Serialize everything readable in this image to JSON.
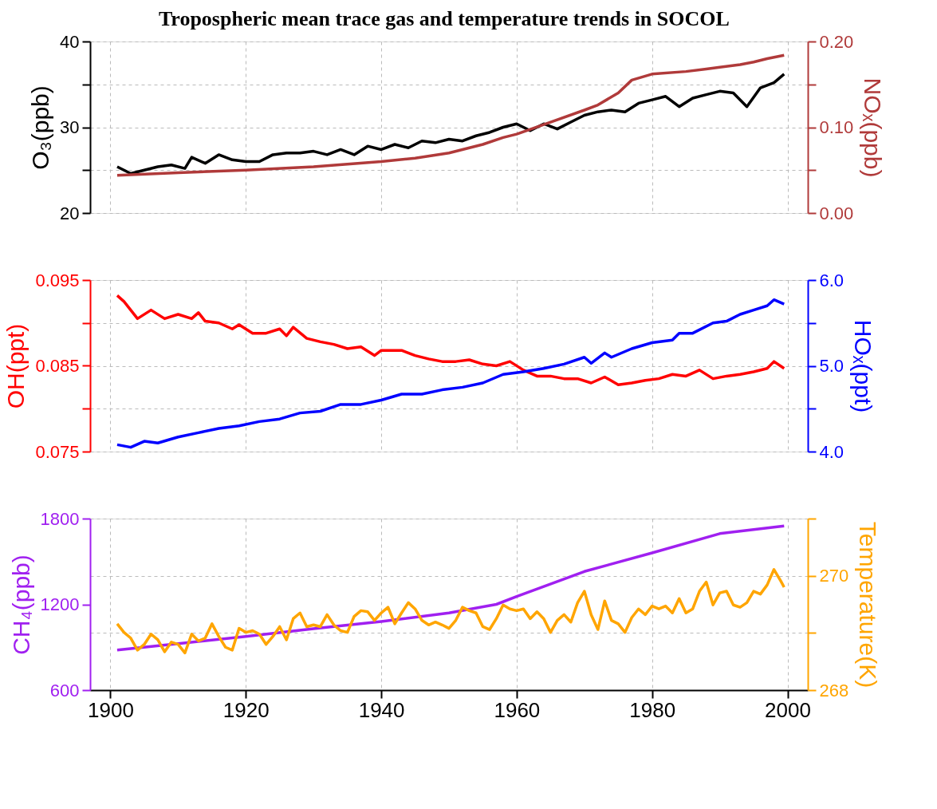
{
  "chart_data": [
    {
      "type": "line",
      "title": "Tropospheric mean trace gas and temperature trends in SOCOL",
      "ylabel": "O₃(ppb)",
      "y2label": "NOₓ(ppb)",
      "xlim": [
        1897,
        2003
      ],
      "xticks": [
        1900,
        1920,
        1940,
        1960,
        1980,
        2000
      ],
      "tick_labels": "y",
      "grid": true,
      "ylim": [
        20,
        40
      ],
      "yticks": [
        20,
        {
          "value": 25,
          "label": null
        },
        30,
        {
          "value": 35,
          "label": null
        },
        40
      ],
      "y2lim": [
        0,
        0.2
      ],
      "y2ticks": [
        {
          "value": 0,
          "label": "0.00"
        },
        {
          "value": 0.05,
          "label": null
        },
        {
          "value": 0.1,
          "label": "0.10"
        },
        {
          "value": 0.15,
          "label": null
        },
        {
          "value": 0.2,
          "label": "0.20"
        }
      ],
      "series": [
        {
          "color": "#000000",
          "x": [
            1901,
            1903,
            1905,
            1907,
            1909,
            1911,
            1912,
            1914,
            1916,
            1918,
            1920,
            1922,
            1924,
            1926,
            1928,
            1930,
            1932,
            1934,
            1936,
            1938,
            1940,
            1942,
            1944,
            1946,
            1948,
            1950,
            1952,
            1954,
            1956,
            1958,
            1960,
            1962,
            1964,
            1966,
            1968,
            1970,
            1972,
            1974,
            1976,
            1978,
            1980,
            1982,
            1984,
            1986,
            1988,
            1990,
            1992,
            1994,
            1996,
            1998,
            1999.5
          ],
          "values": [
            25.4,
            24.6,
            25.0,
            25.4,
            25.6,
            25.2,
            26.5,
            25.8,
            26.8,
            26.2,
            26.0,
            26.0,
            26.8,
            27.0,
            27.0,
            27.2,
            26.8,
            27.4,
            26.8,
            27.8,
            27.4,
            28.0,
            27.6,
            28.4,
            28.2,
            28.6,
            28.4,
            29.0,
            29.4,
            30.0,
            30.4,
            29.6,
            30.4,
            29.8,
            30.6,
            31.4,
            31.8,
            32.0,
            31.8,
            32.8,
            33.2,
            33.6,
            32.4,
            33.4,
            33.8,
            34.2,
            34.0,
            32.4,
            34.6,
            35.2,
            36.2
          ]
        },
        {
          "color": "#b03a3a",
          "axis": "y2",
          "x": [
            1901,
            1910,
            1920,
            1930,
            1940,
            1945,
            1950,
            1955,
            1958,
            1960,
            1965,
            1970,
            1972,
            1975,
            1977,
            1980,
            1985,
            1988,
            1990,
            1993,
            1995,
            1997,
            1999.5
          ],
          "values": [
            0.044,
            0.047,
            0.05,
            0.054,
            0.06,
            0.064,
            0.07,
            0.08,
            0.088,
            0.092,
            0.106,
            0.12,
            0.126,
            0.14,
            0.155,
            0.162,
            0.165,
            0.168,
            0.17,
            0.173,
            0.176,
            0.18,
            0.184
          ]
        }
      ]
    },
    {
      "type": "line",
      "ylabel": "OH(ppt)",
      "y2label": "HOₓ(ppt)",
      "xlim": [
        1897,
        2003
      ],
      "xticks": [
        1900,
        1920,
        1940,
        1960,
        1980,
        2000
      ],
      "tick_labels": "y",
      "grid": true,
      "ylim": [
        0.075,
        0.095
      ],
      "yticks": [
        0.075,
        {
          "value": 0.08,
          "label": null
        },
        0.085,
        {
          "value": 0.09,
          "label": null
        },
        0.095
      ],
      "y2lim": [
        4,
        6
      ],
      "y2ticks": [
        {
          "value": 4,
          "label": "4.0"
        },
        {
          "value": 4.5,
          "label": null
        },
        {
          "value": 5,
          "label": "5.0"
        },
        {
          "value": 5.5,
          "label": null
        },
        {
          "value": 6,
          "label": "6.0"
        }
      ],
      "series": [
        {
          "color": "#ff0000",
          "x": [
            1901,
            1902,
            1904,
            1906,
            1908,
            1910,
            1912,
            1913,
            1914,
            1916,
            1918,
            1919,
            1921,
            1923,
            1925,
            1926,
            1927,
            1929,
            1931,
            1933,
            1935,
            1937,
            1939,
            1940,
            1943,
            1945,
            1947,
            1949,
            1951,
            1953,
            1955,
            1957,
            1959,
            1961,
            1963,
            1965,
            1967,
            1969,
            1971,
            1973,
            1975,
            1977,
            1979,
            1981,
            1983,
            1985,
            1987,
            1989,
            1991,
            1993,
            1995,
            1997,
            1998,
            1999.5
          ],
          "values": [
            0.0932,
            0.0925,
            0.0905,
            0.0915,
            0.0905,
            0.091,
            0.0905,
            0.0912,
            0.0902,
            0.09,
            0.0893,
            0.0898,
            0.0888,
            0.0888,
            0.0893,
            0.0885,
            0.0895,
            0.0882,
            0.0878,
            0.0875,
            0.087,
            0.0872,
            0.0862,
            0.0868,
            0.0868,
            0.0862,
            0.0858,
            0.0855,
            0.0855,
            0.0857,
            0.0852,
            0.085,
            0.0855,
            0.0845,
            0.0838,
            0.0838,
            0.0835,
            0.0835,
            0.083,
            0.0837,
            0.0828,
            0.083,
            0.0833,
            0.0835,
            0.084,
            0.0838,
            0.0845,
            0.0835,
            0.0838,
            0.084,
            0.0843,
            0.0847,
            0.0855,
            0.0847
          ]
        },
        {
          "color": "#0000ff",
          "axis": "y2",
          "x": [
            1901,
            1903,
            1905,
            1907,
            1910,
            1913,
            1916,
            1919,
            1922,
            1925,
            1928,
            1931,
            1934,
            1937,
            1940,
            1943,
            1946,
            1949,
            1952,
            1955,
            1958,
            1961,
            1964,
            1967,
            1970,
            1971,
            1973,
            1974,
            1977,
            1980,
            1983,
            1984,
            1986,
            1989,
            1991,
            1993,
            1995,
            1997,
            1998,
            1999.5
          ],
          "values": [
            4.08,
            4.05,
            4.12,
            4.1,
            4.17,
            4.22,
            4.27,
            4.3,
            4.35,
            4.38,
            4.45,
            4.47,
            4.55,
            4.55,
            4.6,
            4.67,
            4.67,
            4.72,
            4.75,
            4.8,
            4.9,
            4.93,
            4.97,
            5.02,
            5.1,
            5.03,
            5.15,
            5.1,
            5.2,
            5.27,
            5.3,
            5.38,
            5.38,
            5.5,
            5.52,
            5.6,
            5.65,
            5.7,
            5.77,
            5.72
          ]
        }
      ]
    },
    {
      "type": "line",
      "ylabel": "CH₄(ppb)",
      "y2label": "Temperature(K)",
      "xlim": [
        1897,
        2003
      ],
      "xticks": [
        1900,
        1920,
        1940,
        1960,
        1980,
        2000
      ],
      "grid": true,
      "ylim": [
        600,
        1800
      ],
      "yticks": [
        600,
        1200,
        1800
      ],
      "y2lim": [
        268,
        271
      ],
      "y2ticks": [
        268,
        {
          "value": 269,
          "label": null
        },
        270,
        {
          "value": 271,
          "label": null
        }
      ],
      "series": [
        {
          "color": "#a020f0",
          "x": [
            1901,
            1910,
            1920,
            1930,
            1940,
            1950,
            1957,
            1960,
            1970,
            1980,
            1990,
            1999.5
          ],
          "values": [
            880,
            925,
            975,
            1030,
            1080,
            1140,
            1200,
            1255,
            1430,
            1560,
            1695,
            1748
          ]
        },
        {
          "color": "#ffa500",
          "axis": "y2",
          "x": [
            1901,
            1902,
            1903,
            1904,
            1905,
            1906,
            1907,
            1908,
            1909,
            1910,
            1911,
            1912,
            1913,
            1914,
            1915,
            1916,
            1917,
            1918,
            1919,
            1920,
            1921,
            1922,
            1923,
            1924,
            1925,
            1926,
            1927,
            1928,
            1929,
            1930,
            1931,
            1932,
            1933,
            1934,
            1935,
            1936,
            1937,
            1938,
            1939,
            1940,
            1941,
            1942,
            1943,
            1944,
            1945,
            1946,
            1947,
            1948,
            1949,
            1950,
            1951,
            1952,
            1953,
            1954,
            1955,
            1956,
            1957,
            1958,
            1959,
            1960,
            1961,
            1962,
            1963,
            1964,
            1965,
            1966,
            1967,
            1968,
            1969,
            1970,
            1971,
            1972,
            1973,
            1974,
            1975,
            1976,
            1977,
            1978,
            1979,
            1980,
            1981,
            1982,
            1983,
            1984,
            1985,
            1986,
            1987,
            1988,
            1989,
            1990,
            1991,
            1992,
            1993,
            1994,
            1995,
            1996,
            1997,
            1998,
            1999,
            1999.5
          ],
          "values": [
            269.16,
            269.01,
            268.91,
            268.7,
            268.8,
            268.98,
            268.88,
            268.67,
            268.84,
            268.8,
            268.65,
            268.98,
            268.86,
            268.91,
            269.16,
            268.94,
            268.75,
            268.7,
            269.08,
            269.01,
            269.04,
            268.98,
            268.8,
            268.94,
            269.11,
            268.88,
            269.25,
            269.35,
            269.11,
            269.14,
            269.11,
            269.32,
            269.14,
            269.04,
            269.01,
            269.29,
            269.39,
            269.37,
            269.22,
            269.35,
            269.45,
            269.16,
            269.35,
            269.53,
            269.42,
            269.22,
            269.14,
            269.19,
            269.14,
            269.08,
            269.22,
            269.45,
            269.39,
            269.35,
            269.11,
            269.06,
            269.25,
            269.49,
            269.42,
            269.39,
            269.42,
            269.25,
            269.37,
            269.25,
            269.01,
            269.22,
            269.32,
            269.19,
            269.53,
            269.73,
            269.32,
            269.06,
            269.56,
            269.22,
            269.16,
            269.01,
            269.27,
            269.42,
            269.32,
            269.47,
            269.42,
            269.47,
            269.35,
            269.6,
            269.35,
            269.42,
            269.73,
            269.89,
            269.49,
            269.7,
            269.73,
            269.49,
            269.45,
            269.53,
            269.73,
            269.68,
            269.84,
            270.11,
            269.91,
            269.8
          ]
        }
      ]
    }
  ]
}
